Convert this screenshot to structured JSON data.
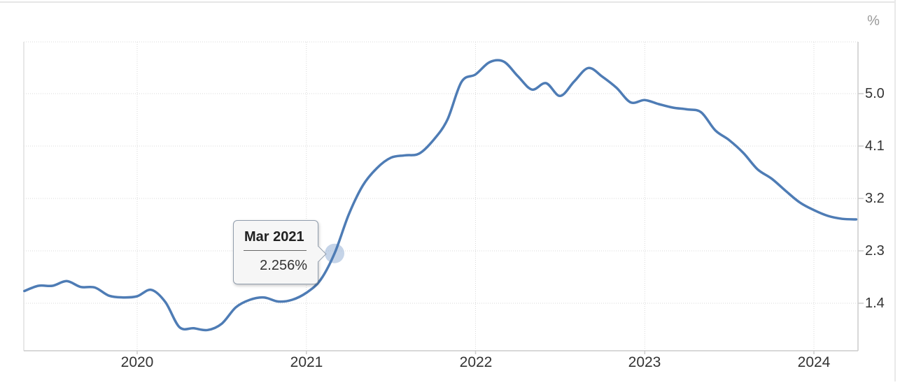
{
  "y_axis": {
    "unit": "%",
    "ticks": [
      "5.0",
      "4.1",
      "3.2",
      "2.3",
      "1.4"
    ]
  },
  "x_axis": {
    "ticks": [
      "2020",
      "2021",
      "2022",
      "2023",
      "2024"
    ]
  },
  "tooltip": {
    "title": "Mar 2021",
    "value_display": "2.256%"
  },
  "colors": {
    "line": "#4e7cb5",
    "marker_fill": "rgba(150,176,214,0.55)",
    "grid_dotted": "#d9d9d9",
    "axis_solid": "#cccccc",
    "left_border": "#e0e0e0",
    "label_text": "#333333",
    "unit_text": "#999999"
  },
  "chart_data": {
    "type": "line",
    "title": "",
    "xlabel": "",
    "ylabel": "%",
    "grid": "dotted",
    "legend": "none",
    "x_tick_labels": [
      "2020",
      "2021",
      "2022",
      "2023",
      "2024"
    ],
    "x_tick_years": [
      2020,
      2021,
      2022,
      2023,
      2024
    ],
    "y_tick_values": [
      5.0,
      4.1,
      3.2,
      2.3,
      1.4
    ],
    "ylim_visible": [
      0.57,
      5.88
    ],
    "x": [
      "2019-05",
      "2019-06",
      "2019-07",
      "2019-08",
      "2019-09",
      "2019-10",
      "2019-11",
      "2019-12",
      "2020-01",
      "2020-02",
      "2020-03",
      "2020-04",
      "2020-05",
      "2020-06",
      "2020-07",
      "2020-08",
      "2020-09",
      "2020-10",
      "2020-11",
      "2020-12",
      "2021-01",
      "2021-02",
      "2021-03",
      "2021-04",
      "2021-05",
      "2021-06",
      "2021-07",
      "2021-08",
      "2021-09",
      "2021-10",
      "2021-11",
      "2021-12",
      "2022-01",
      "2022-02",
      "2022-03",
      "2022-04",
      "2022-05",
      "2022-06",
      "2022-07",
      "2022-08",
      "2022-09",
      "2022-10",
      "2022-11",
      "2022-12",
      "2023-01",
      "2023-02",
      "2023-03",
      "2023-04",
      "2023-05",
      "2023-06",
      "2023-07",
      "2023-08",
      "2023-09",
      "2023-10",
      "2023-11",
      "2023-12",
      "2024-01",
      "2024-02",
      "2024-03",
      "2024-04"
    ],
    "series": [
      {
        "name": "rate-percent",
        "values": [
          1.61,
          1.7,
          1.7,
          1.78,
          1.68,
          1.67,
          1.53,
          1.5,
          1.52,
          1.63,
          1.42,
          0.99,
          0.97,
          0.94,
          1.05,
          1.33,
          1.46,
          1.5,
          1.43,
          1.46,
          1.58,
          1.8,
          2.256,
          2.92,
          3.42,
          3.72,
          3.9,
          3.94,
          3.97,
          4.2,
          4.55,
          5.2,
          5.33,
          5.54,
          5.55,
          5.3,
          5.07,
          5.18,
          4.96,
          5.21,
          5.44,
          5.29,
          5.1,
          4.85,
          4.89,
          4.82,
          4.76,
          4.73,
          4.68,
          4.37,
          4.2,
          3.98,
          3.7,
          3.54,
          3.33,
          3.13,
          3.0,
          2.9,
          2.85,
          2.84
        ]
      }
    ],
    "highlight": {
      "x": "2021-03",
      "index": 22,
      "value": 2.256,
      "label": "Mar 2021",
      "display": "2.256%"
    }
  }
}
